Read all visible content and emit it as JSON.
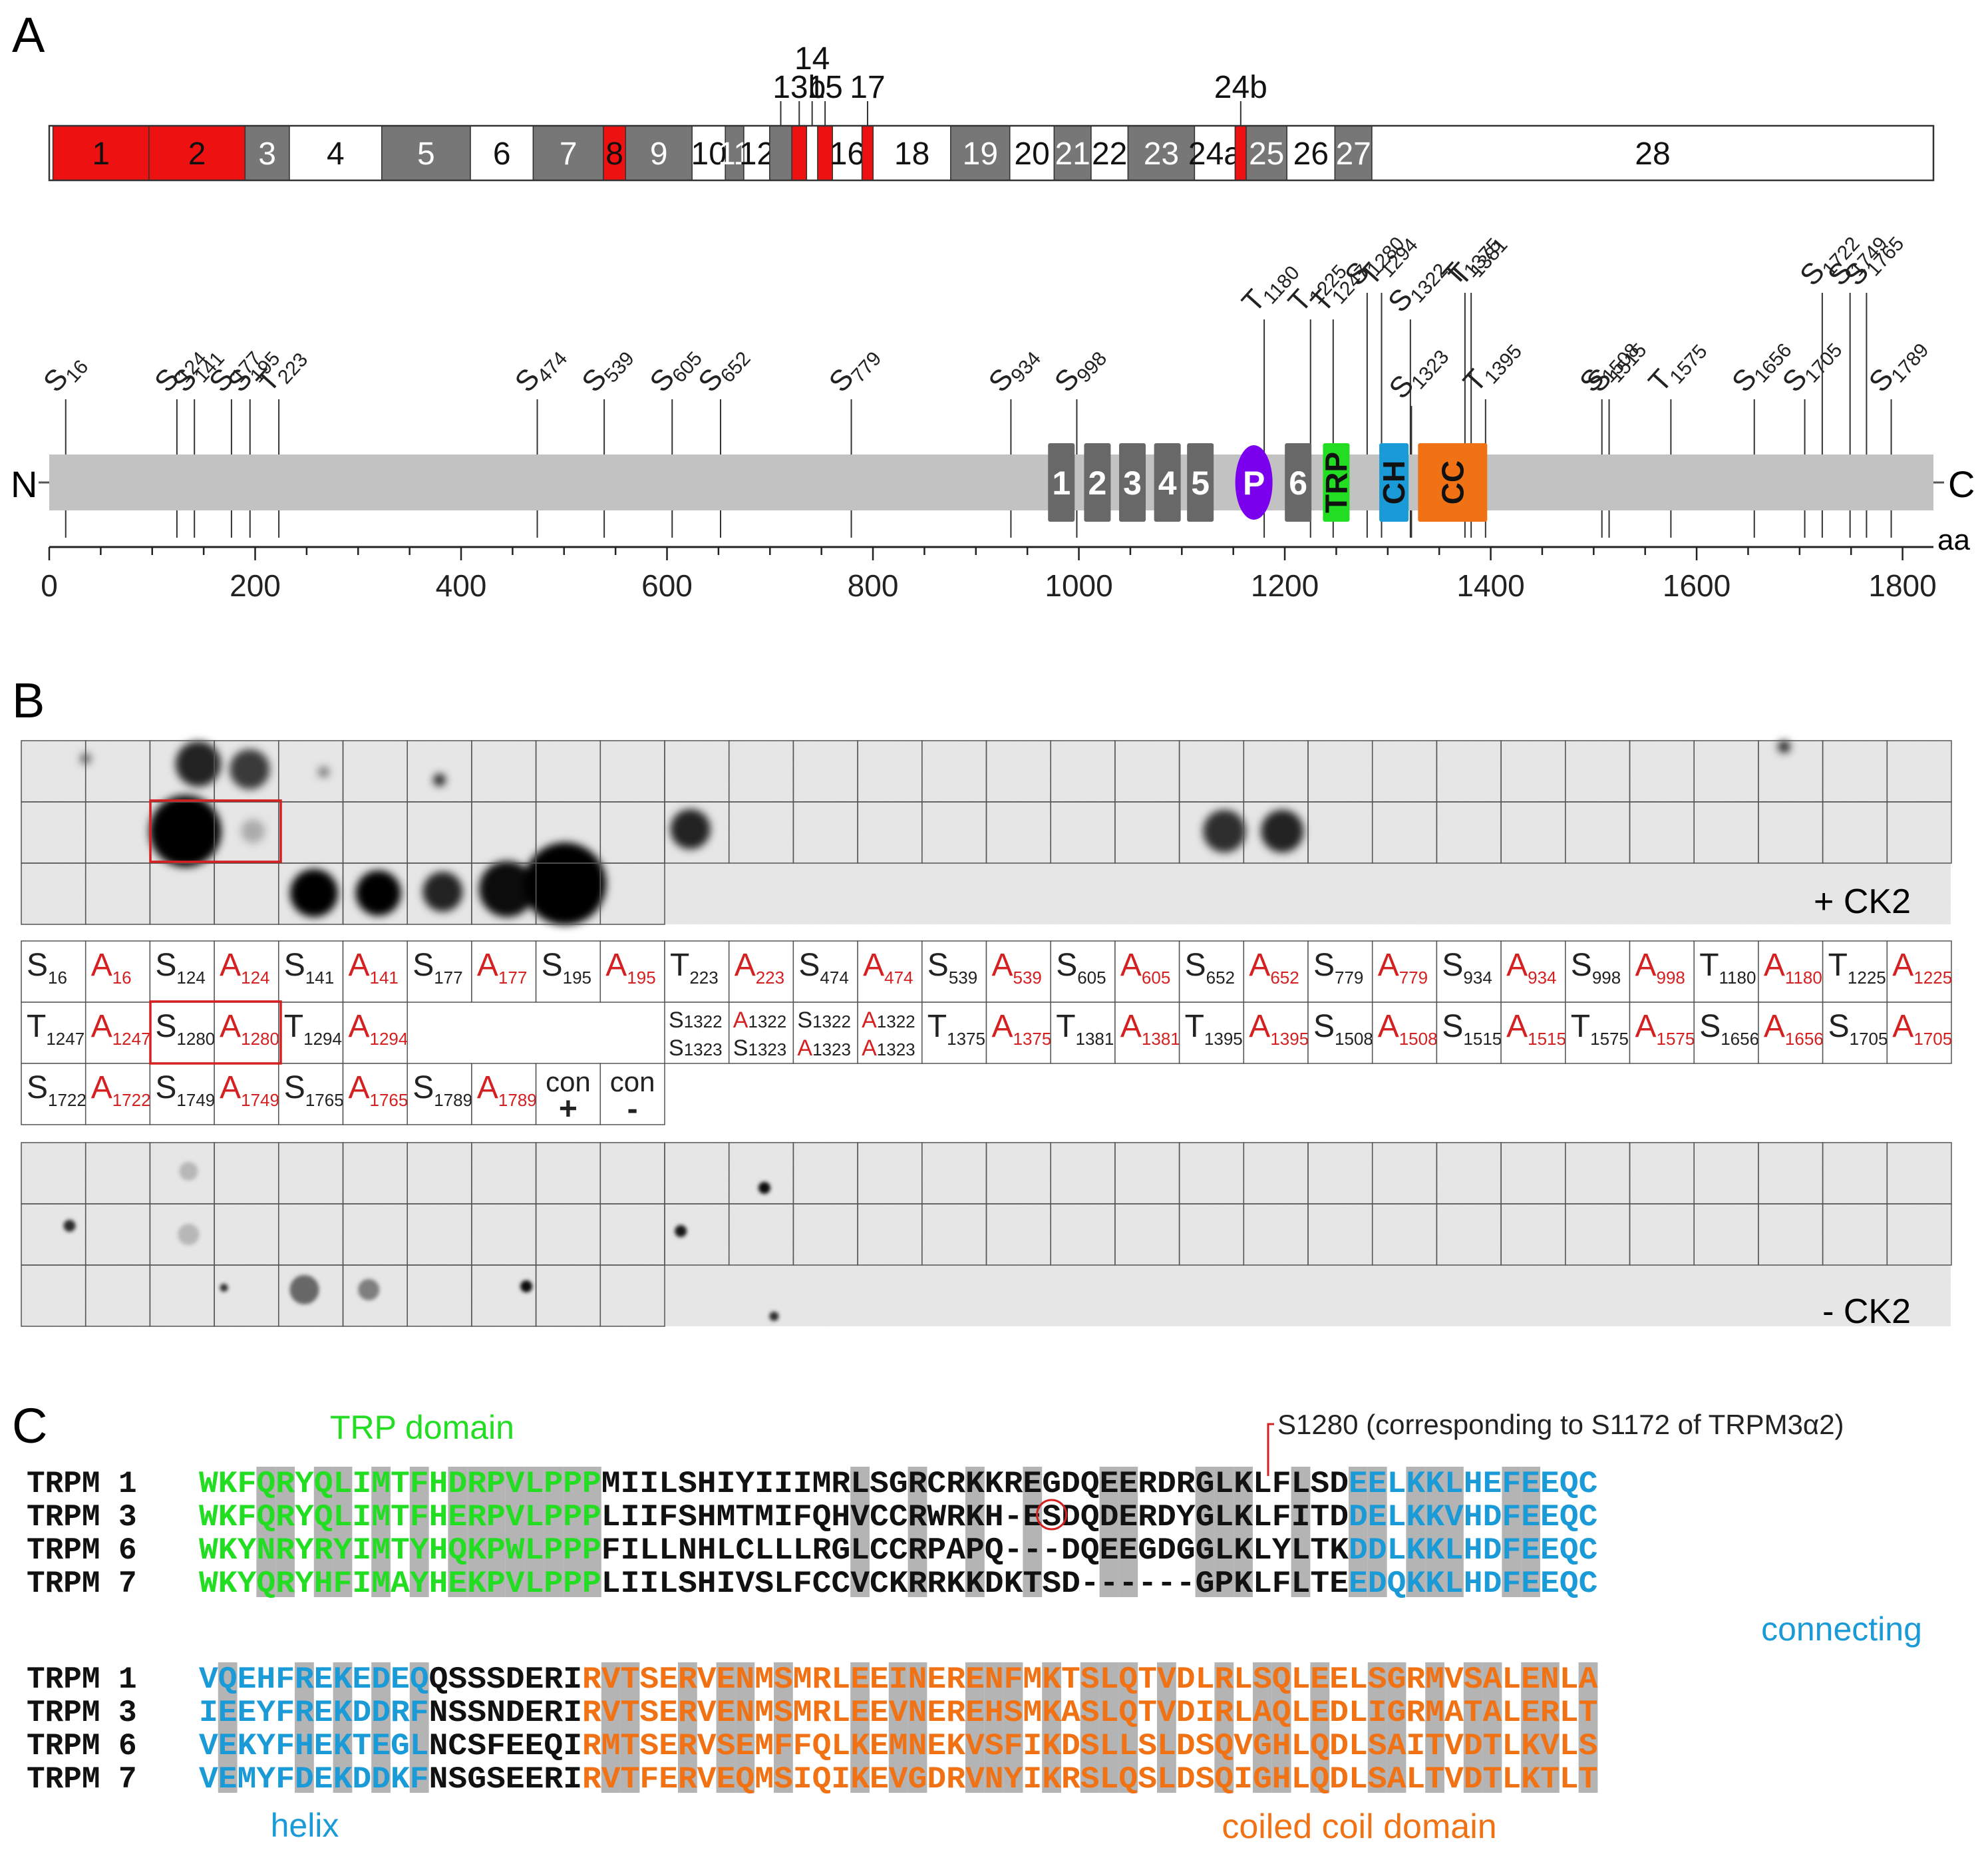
{
  "panel_labels": {
    "a": "A",
    "b": "B",
    "c": "C"
  },
  "exons": [
    {
      "label": "1",
      "start": 1,
      "end": 27,
      "color": "red"
    },
    {
      "label": "2",
      "start": 27,
      "end": 53,
      "color": "red"
    },
    {
      "label": "3",
      "start": 53,
      "end": 65,
      "color": "gray"
    },
    {
      "label": "4",
      "start": 65,
      "end": 90,
      "color": "white"
    },
    {
      "label": "5",
      "start": 90,
      "end": 114,
      "color": "gray"
    },
    {
      "label": "6",
      "start": 114,
      "end": 131,
      "color": "white"
    },
    {
      "label": "7",
      "start": 131,
      "end": 150,
      "color": "gray"
    },
    {
      "label": "8",
      "start": 150,
      "end": 156,
      "color": "red"
    },
    {
      "label": "9",
      "start": 156,
      "end": 174,
      "color": "gray"
    },
    {
      "label": "10",
      "start": 174,
      "end": 183,
      "color": "white"
    },
    {
      "label": "11",
      "start": 183,
      "end": 188,
      "color": "gray"
    },
    {
      "label": "12",
      "start": 188,
      "end": 195,
      "color": "white"
    },
    {
      "label": "13a",
      "start": 195,
      "end": 201,
      "color": "gray",
      "above": true
    },
    {
      "label": "13b",
      "start": 201,
      "end": 205,
      "color": "red",
      "above": true
    },
    {
      "label": "14",
      "start": 205,
      "end": 208,
      "color": "white",
      "above": true
    },
    {
      "label": "15",
      "start": 208,
      "end": 212,
      "color": "red",
      "above": true
    },
    {
      "label": "16",
      "start": 212,
      "end": 220,
      "color": "white"
    },
    {
      "label": "17",
      "start": 220,
      "end": 223,
      "color": "red",
      "above": true
    },
    {
      "label": "18",
      "start": 223,
      "end": 244,
      "color": "white"
    },
    {
      "label": "19",
      "start": 244,
      "end": 260,
      "color": "gray"
    },
    {
      "label": "20",
      "start": 260,
      "end": 272,
      "color": "white"
    },
    {
      "label": "21",
      "start": 272,
      "end": 282,
      "color": "gray"
    },
    {
      "label": "22",
      "start": 282,
      "end": 292,
      "color": "white"
    },
    {
      "label": "23",
      "start": 292,
      "end": 310,
      "color": "gray"
    },
    {
      "label": "24a",
      "start": 310,
      "end": 321,
      "color": "white"
    },
    {
      "label": "24b",
      "start": 321,
      "end": 324,
      "color": "red",
      "above": true
    },
    {
      "label": "25",
      "start": 324,
      "end": 335,
      "color": "gray"
    },
    {
      "label": "26",
      "start": 335,
      "end": 348,
      "color": "white"
    },
    {
      "label": "27",
      "start": 348,
      "end": 358,
      "color": "gray"
    },
    {
      "label": "28",
      "start": 358,
      "end": 510,
      "color": "white"
    }
  ],
  "protein": {
    "n_label": "N",
    "c_label": "C",
    "aa_label": "aa",
    "length": 1830,
    "ticks": [
      0,
      200,
      400,
      600,
      800,
      1000,
      1200,
      1400,
      1600,
      1800
    ],
    "domains": [
      {
        "label": "1",
        "pos": 983
      },
      {
        "label": "2",
        "pos": 1018
      },
      {
        "label": "3",
        "pos": 1052
      },
      {
        "label": "4",
        "pos": 1086
      },
      {
        "label": "5",
        "pos": 1118
      },
      {
        "label": "P",
        "pos": 1170,
        "type": "pore"
      },
      {
        "label": "6",
        "pos": 1213
      },
      {
        "label": "TRP",
        "pos": 1250,
        "type": "trp"
      },
      {
        "label": "CH",
        "pos": 1306,
        "type": "ch"
      },
      {
        "label": "CC",
        "pos": 1363,
        "type": "cc"
      }
    ],
    "sites": [
      {
        "res": "S",
        "num": "16",
        "pos": 16,
        "tier": 0
      },
      {
        "res": "S",
        "num": "124",
        "pos": 124,
        "tier": 0
      },
      {
        "res": "S",
        "num": "141",
        "pos": 141,
        "tier": 0
      },
      {
        "res": "S",
        "num": "177",
        "pos": 177,
        "tier": 0
      },
      {
        "res": "S",
        "num": "195",
        "pos": 195,
        "tier": 0
      },
      {
        "res": "T",
        "num": "223",
        "pos": 223,
        "tier": 0
      },
      {
        "res": "S",
        "num": "474",
        "pos": 474,
        "tier": 0
      },
      {
        "res": "S",
        "num": "539",
        "pos": 539,
        "tier": 0
      },
      {
        "res": "S",
        "num": "605",
        "pos": 605,
        "tier": 0
      },
      {
        "res": "S",
        "num": "652",
        "pos": 652,
        "tier": 0
      },
      {
        "res": "S",
        "num": "779",
        "pos": 779,
        "tier": 0
      },
      {
        "res": "S",
        "num": "934",
        "pos": 934,
        "tier": 0
      },
      {
        "res": "S",
        "num": "998",
        "pos": 998,
        "tier": 0
      },
      {
        "res": "T",
        "num": "1180",
        "pos": 1180,
        "tier": 1
      },
      {
        "res": "T",
        "num": "1225",
        "pos": 1225,
        "tier": 1
      },
      {
        "res": "T",
        "num": "1247",
        "pos": 1247,
        "tier": 1
      },
      {
        "res": "S",
        "num": "1280",
        "pos": 1280,
        "tier": 2
      },
      {
        "res": "T",
        "num": "1294",
        "pos": 1294,
        "tier": 2
      },
      {
        "res": "S",
        "num": "1322",
        "pos": 1322,
        "tier": 1
      },
      {
        "res": "S",
        "num": "1323",
        "pos": 1323,
        "tier": 1
      },
      {
        "res": "T",
        "num": "1375",
        "pos": 1375,
        "tier": 2
      },
      {
        "res": "T",
        "num": "1381",
        "pos": 1381,
        "tier": 2
      },
      {
        "res": "T",
        "num": "1395",
        "pos": 1395,
        "tier": 1
      },
      {
        "res": "S",
        "num": "1508",
        "pos": 1508,
        "tier": 0
      },
      {
        "res": "S",
        "num": "1515",
        "pos": 1515,
        "tier": 0
      },
      {
        "res": "T",
        "num": "1575",
        "pos": 1575,
        "tier": 0
      },
      {
        "res": "S",
        "num": "1656",
        "pos": 1656,
        "tier": 0
      },
      {
        "res": "S",
        "num": "1705",
        "pos": 1705,
        "tier": 0
      },
      {
        "res": "S",
        "num": "1722",
        "pos": 1722,
        "tier": 2
      },
      {
        "res": "S",
        "num": "1749",
        "pos": 1749,
        "tier": 2
      },
      {
        "res": "S",
        "num": "1765",
        "pos": 1765,
        "tier": 2
      },
      {
        "res": "S",
        "num": "1789",
        "pos": 1789,
        "tier": 0
      }
    ]
  },
  "blot": {
    "plus_label": "+ CK2",
    "minus_label": "- CK2",
    "grid_rows": [
      [
        {
          "r": "S",
          "n": "16"
        },
        {
          "r": "A",
          "n": "16"
        },
        {
          "r": "S",
          "n": "124"
        },
        {
          "r": "A",
          "n": "124"
        },
        {
          "r": "S",
          "n": "141"
        },
        {
          "r": "A",
          "n": "141"
        },
        {
          "r": "S",
          "n": "177"
        },
        {
          "r": "A",
          "n": "177"
        },
        {
          "r": "S",
          "n": "195"
        },
        {
          "r": "A",
          "n": "195"
        },
        {
          "r": "T",
          "n": "223"
        },
        {
          "r": "A",
          "n": "223"
        },
        {
          "r": "S",
          "n": "474"
        },
        {
          "r": "A",
          "n": "474"
        },
        {
          "r": "S",
          "n": "539"
        },
        {
          "r": "A",
          "n": "539"
        },
        {
          "r": "S",
          "n": "605"
        },
        {
          "r": "A",
          "n": "605"
        },
        {
          "r": "S",
          "n": "652"
        },
        {
          "r": "A",
          "n": "652"
        },
        {
          "r": "S",
          "n": "779"
        },
        {
          "r": "A",
          "n": "779"
        },
        {
          "r": "S",
          "n": "934"
        },
        {
          "r": "A",
          "n": "934"
        },
        {
          "r": "S",
          "n": "998"
        },
        {
          "r": "A",
          "n": "998"
        },
        {
          "r": "T",
          "n": "1180"
        },
        {
          "r": "A",
          "n": "1180"
        },
        {
          "r": "T",
          "n": "1225"
        },
        {
          "r": "A",
          "n": "1225"
        }
      ],
      [
        {
          "r": "T",
          "n": "1247"
        },
        {
          "r": "A",
          "n": "1247"
        },
        {
          "r": "S",
          "n": "1280"
        },
        {
          "r": "A",
          "n": "1280"
        },
        {
          "r": "T",
          "n": "1294"
        },
        {
          "r": "A",
          "n": "1294"
        },
        null,
        null,
        null,
        null,
        {
          "double": true,
          "r1": "S",
          "n1": "1322",
          "r2": "S",
          "n2": "1323"
        },
        {
          "double": true,
          "r1": "A",
          "n1": "1322",
          "r2": "S",
          "n2": "1323"
        },
        {
          "double": true,
          "r1": "S",
          "n1": "1322",
          "r2": "A",
          "n2": "1323"
        },
        {
          "double": true,
          "r1": "A",
          "n1": "1322",
          "r2": "A",
          "n2": "1323"
        },
        {
          "r": "T",
          "n": "1375"
        },
        {
          "r": "A",
          "n": "1375"
        },
        {
          "r": "T",
          "n": "1381"
        },
        {
          "r": "A",
          "n": "1381"
        },
        {
          "r": "T",
          "n": "1395"
        },
        {
          "r": "A",
          "n": "1395"
        },
        {
          "r": "S",
          "n": "1508"
        },
        {
          "r": "A",
          "n": "1508"
        },
        {
          "r": "S",
          "n": "1515"
        },
        {
          "r": "A",
          "n": "1515"
        },
        {
          "r": "T",
          "n": "1575"
        },
        {
          "r": "A",
          "n": "1575"
        },
        {
          "r": "S",
          "n": "1656"
        },
        {
          "r": "A",
          "n": "1656"
        },
        {
          "r": "S",
          "n": "1705"
        },
        {
          "r": "A",
          "n": "1705"
        }
      ],
      [
        {
          "r": "S",
          "n": "1722"
        },
        {
          "r": "A",
          "n": "1722"
        },
        {
          "r": "S",
          "n": "1749"
        },
        {
          "r": "A",
          "n": "1749"
        },
        {
          "r": "S",
          "n": "1765"
        },
        {
          "r": "A",
          "n": "1765"
        },
        {
          "r": "S",
          "n": "1789"
        },
        {
          "r": "A",
          "n": "1789"
        },
        {
          "con": true,
          "t": "con",
          "s": "+"
        },
        {
          "con": true,
          "t": "con",
          "s": "-"
        }
      ]
    ]
  },
  "alignment": {
    "trp_label": "TRP domain",
    "site_label": "S1280 (corresponding to S1172 of TRPM3α2)",
    "connecting_label": "connecting",
    "helix_label": "helix",
    "cc_label": "coiled coil domain",
    "block1": [
      {
        "name": "TRPM 1",
        "seq": "WKFQRYQLIMTFHDRPVLPPPMIILSHIYIIIMRLSGRCRKKREGDQEERDRGLKLFLSDEELKKLHEFEEQC"
      },
      {
        "name": "TRPM 3",
        "seq": "WKFQRYQLIMTFHERPVLPPPLIIFSHMTMIFQHVCCRWRKH-ESDQDERDYGLKLFITDDELKKVHDFEEQC"
      },
      {
        "name": "TRPM 6",
        "seq": "WKYNRYRYIMTYHQKPWLPPPFILLNHLCLLLRGLCCRPAPQ---DQEEGDGGLKLYLTKDDLKKLHDFEEQC"
      },
      {
        "name": "TRPM 7",
        "seq": "WKYQRYHFIMAYHEKPVLPPPLIILSHIVSLFCCVCKRRKKDKTSD------GPKLFLTEEDQKKLHDFEEQC"
      }
    ],
    "block2": [
      {
        "name": "TRPM 1",
        "seq": "VQEHFREKEDEQQSSSDERIRVTSERVENMSMRLEEINERENFMKTSLQTVDLRLSQLEELSGRMVSALENLA"
      },
      {
        "name": "TRPM 3",
        "seq": "IEEYFREKDDRFNSSNDERIRVTSERVENMSMRLEEVNEREHSMKASLQTVDIRLAQLEDLIGRMATALERLT"
      },
      {
        "name": "TRPM 6",
        "seq": "VEKYFHEKTEGLNCSFEEQIRMTSERVSEMFFQLKEMNEKVSFIKDSLLSLDSQVGHLQDLSAITVDTLKVLS"
      },
      {
        "name": "TRPM 7",
        "seq": "VEMYFDEKDDKFNSGSEERIRVTFERVEQMSIQIKEVGDRVNYIKRSLQSLDSQIGHLQDLSALTVDTLKTLT"
      }
    ]
  },
  "colors": {
    "red": "#ee1111",
    "gray": "#777777",
    "trp": "#22dd22",
    "cyan": "#1a9ad6",
    "orange": "#f07214",
    "pore": "#7a00ee",
    "shade": "#b4b4b4",
    "labelRed": "#d42020"
  }
}
